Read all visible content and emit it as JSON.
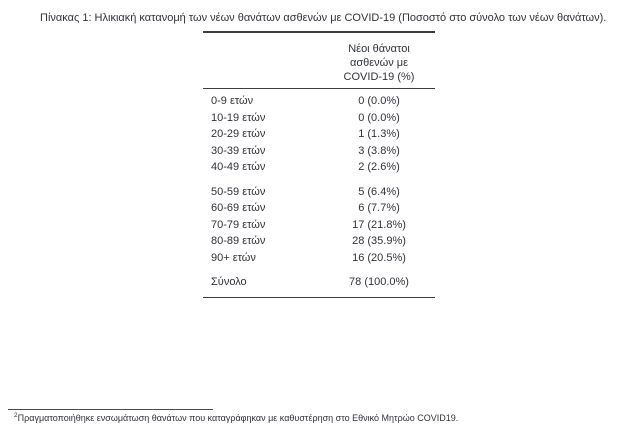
{
  "title": "Πίνακας 1: Ηλικιακή κατανομή των νέων θανάτων ασθενών με COVID-19 (Ποσοστό στο σύνολο των νέων θανάτων).",
  "table": {
    "header": "Νέοι θάνατοι\nασθενών με\nCOVID-19 (%)",
    "rows": [
      {
        "age": "0-9 ετών",
        "value": "0 (0.0%)"
      },
      {
        "age": "10-19 ετών",
        "value": "0 (0.0%)"
      },
      {
        "age": "20-29 ετών",
        "value": "1 (1.3%)"
      },
      {
        "age": "30-39 ετών",
        "value": "3 (3.8%)"
      },
      {
        "age": "40-49 ετών",
        "value": "2 (2.6%)"
      },
      {
        "age": "50-59 ετών",
        "value": "5 (6.4%)"
      },
      {
        "age": "60-69 ετών",
        "value": "6 (7.7%)"
      },
      {
        "age": "70-79 ετών",
        "value": "17 (21.8%)"
      },
      {
        "age": "80-89 ετών",
        "value": "28 (35.9%)"
      },
      {
        "age": "90+ ετών",
        "value": "16 (20.5%)"
      }
    ],
    "total": {
      "age": "Σύνολο",
      "value": "78 (100.0%)"
    }
  },
  "footnote": {
    "marker": "2",
    "text": "Πραγματοποιήθηκε ενσωμάτωση θανάτων που καταγράφηκαν με καθυστέρηση στο Εθνικό Μητρώο COVID19."
  },
  "colors": {
    "text": "#2f323a",
    "rule": "#3d3d3d",
    "background": "#ffffff"
  }
}
